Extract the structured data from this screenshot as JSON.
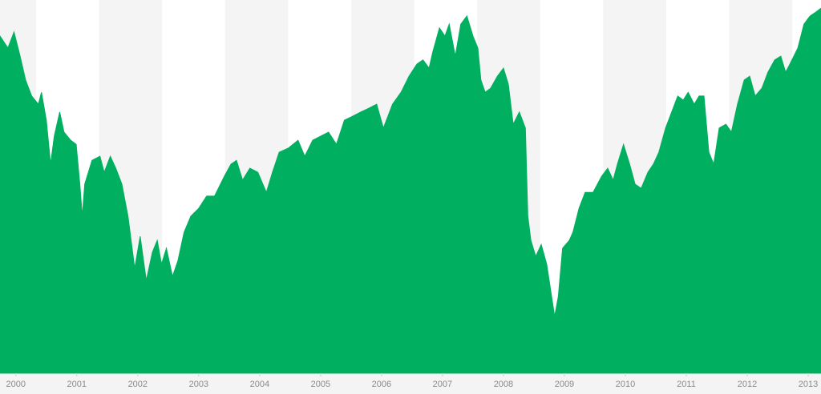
{
  "chart_data": {
    "type": "area",
    "color": "#00b060",
    "x": [
      1999.74,
      1999.87,
      1999.97,
      2000.07,
      2000.16,
      2000.26,
      2000.37,
      2000.42,
      2000.5,
      2000.57,
      2000.63,
      2000.72,
      2000.79,
      2000.9,
      2000.99,
      2001.05,
      2001.09,
      2001.13,
      2001.25,
      2001.38,
      2001.45,
      2001.55,
      2001.64,
      2001.74,
      2001.84,
      2001.95,
      2002.04,
      2002.14,
      2002.24,
      2002.32,
      2002.39,
      2002.47,
      2002.57,
      2002.66,
      2002.76,
      2002.87,
      2003.0,
      2003.13,
      2003.26,
      2003.42,
      2003.53,
      2003.62,
      2003.72,
      2003.84,
      2003.97,
      2004.11,
      2004.21,
      2004.32,
      2004.47,
      2004.63,
      2004.74,
      2004.87,
      2005.0,
      2005.13,
      2005.26,
      2005.39,
      2005.53,
      2005.66,
      2005.79,
      2005.92,
      2006.03,
      2006.18,
      2006.32,
      2006.45,
      2006.58,
      2006.68,
      2006.78,
      2006.84,
      2006.95,
      2007.04,
      2007.11,
      2007.21,
      2007.3,
      2007.4,
      2007.5,
      2007.58,
      2007.63,
      2007.7,
      2007.79,
      2007.9,
      2008.0,
      2008.08,
      2008.16,
      2008.26,
      2008.36,
      2008.4,
      2008.45,
      2008.53,
      2008.62,
      2008.71,
      2008.79,
      2008.84,
      2008.9,
      2008.97,
      2009.08,
      2009.14,
      2009.24,
      2009.34,
      2009.47,
      2009.61,
      2009.71,
      2009.8,
      2009.87,
      2009.97,
      2010.07,
      2010.16,
      2010.26,
      2010.37,
      2010.46,
      2010.55,
      2010.66,
      2010.76,
      2010.86,
      2010.95,
      2011.03,
      2011.13,
      2011.21,
      2011.29,
      2011.37,
      2011.45,
      2011.54,
      2011.65,
      2011.74,
      2011.84,
      2011.95,
      2012.04,
      2012.13,
      2012.24,
      2012.34,
      2012.45,
      2012.55,
      2012.63,
      2012.7,
      2012.83,
      2012.93,
      2013.03,
      2013.13,
      2013.21
    ],
    "values": [
      1501,
      1466,
      1513,
      1442,
      1372,
      1325,
      1301,
      1336,
      1254,
      1125,
      1207,
      1278,
      1219,
      1195,
      1183,
      1066,
      972,
      1066,
      1136,
      1148,
      1101,
      1148,
      1113,
      1066,
      972,
      819,
      913,
      783,
      866,
      901,
      831,
      878,
      795,
      842,
      925,
      972,
      995,
      1031,
      1031,
      1089,
      1125,
      1136,
      1078,
      1113,
      1101,
      1042,
      1101,
      1160,
      1172,
      1195,
      1148,
      1195,
      1207,
      1219,
      1183,
      1254,
      1266,
      1278,
      1289,
      1301,
      1231,
      1301,
      1336,
      1383,
      1419,
      1431,
      1407,
      1454,
      1525,
      1501,
      1536,
      1442,
      1536,
      1560,
      1501,
      1466,
      1372,
      1336,
      1348,
      1383,
      1407,
      1360,
      1242,
      1278,
      1231,
      972,
      901,
      854,
      889,
      831,
      736,
      678,
      736,
      878,
      901,
      925,
      995,
      1042,
      1042,
      1089,
      1113,
      1078,
      1125,
      1183,
      1125,
      1066,
      1054,
      1101,
      1125,
      1160,
      1231,
      1278,
      1325,
      1313,
      1336,
      1301,
      1325,
      1325,
      1160,
      1125,
      1231,
      1242,
      1219,
      1301,
      1372,
      1383,
      1325,
      1348,
      1395,
      1431,
      1442,
      1395,
      1419,
      1466,
      1536,
      1560,
      1572,
      1583
    ],
    "xlim": [
      1999.74,
      2013.21
    ],
    "xticks": [
      2000,
      2001,
      2002,
      2003,
      2004,
      2005,
      2006,
      2007,
      2008,
      2009,
      2010,
      2011,
      2012,
      2013
    ],
    "ylim": [
      511,
      1607
    ]
  }
}
